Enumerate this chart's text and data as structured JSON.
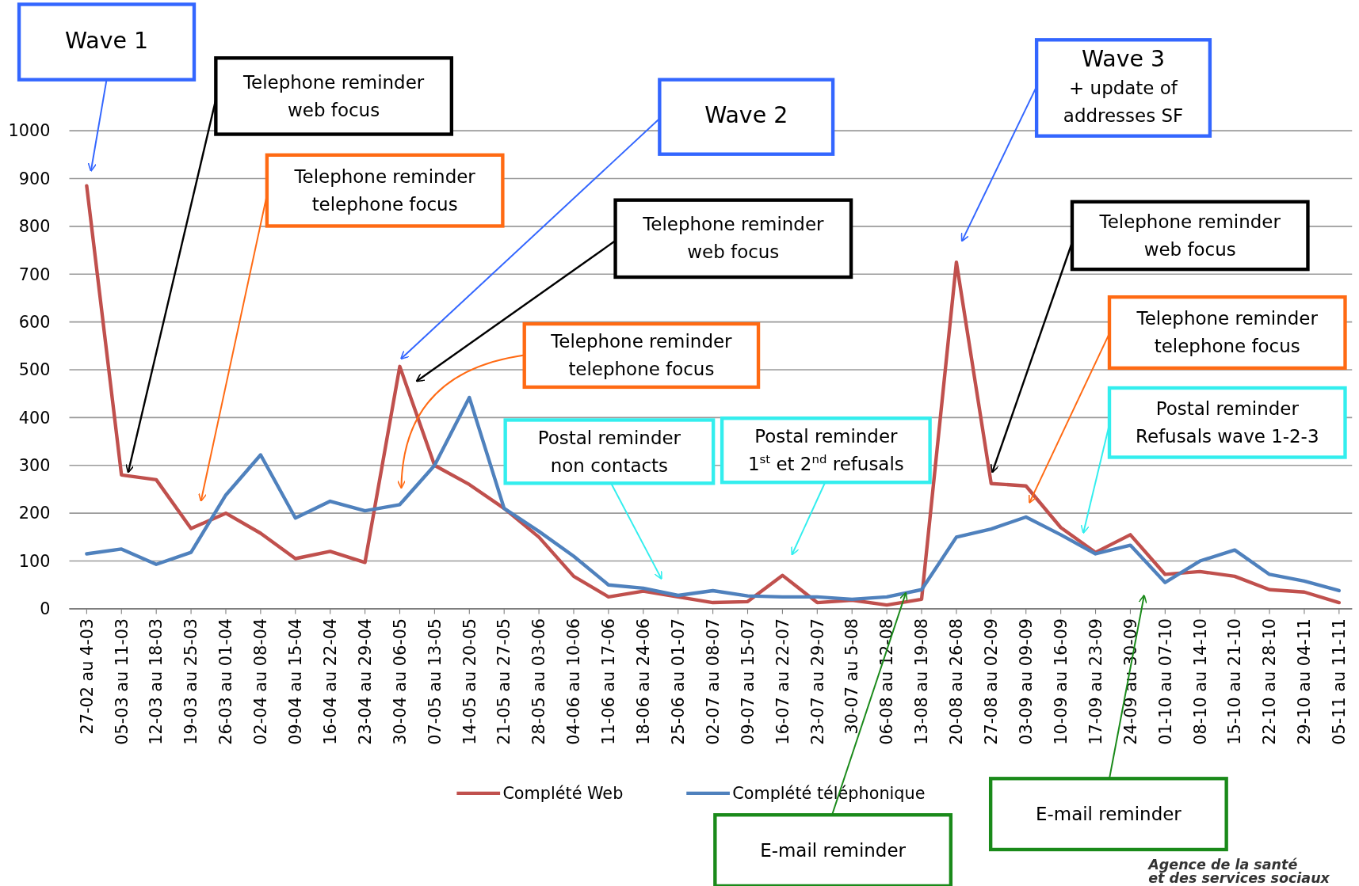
{
  "chart_data": {
    "type": "line",
    "categories": [
      "27-02 au 4-03",
      "05-03 au 11-03",
      "12-03 au 18-03",
      "19-03 au 25-03",
      "26-03 au 01-04",
      "02-04 au 08-04",
      "09-04 au 15-04",
      "16-04 au 22-04",
      "23-04 au 29-04",
      "30-04 au 06-05",
      "07-05 au 13-05",
      "14-05 au 20-05",
      "21-05 au 27-05",
      "28-05 au 03-06",
      "04-06 au 10-06",
      "11-06 au 17-06",
      "18-06 au 24-06",
      "25-06 au 01-07",
      "02-07 au 08-07",
      "09-07 au 15-07",
      "16-07 au 22-07",
      "23-07 au 29-07",
      "30-07 au 5-08",
      "06-08 au 12-08",
      "13-08 au 19-08",
      "20-08 au 26-08",
      "27-08 au 02-09",
      "03-09 au 09-09",
      "10-09 au 16-09",
      "17-09 au 23-09",
      "24-09 au 30-09",
      "01-10 au 07-10",
      "08-10 au 14-10",
      "15-10 au 21-10",
      "22-10 au 28-10",
      "29-10 au 04-11",
      "05-11 au 11-11"
    ],
    "series": [
      {
        "name": "Complété Web",
        "color": "#c0504d",
        "values": [
          885,
          280,
          270,
          168,
          200,
          158,
          105,
          120,
          97,
          507,
          300,
          260,
          210,
          150,
          68,
          25,
          37,
          25,
          13,
          15,
          70,
          13,
          18,
          8,
          20,
          725,
          262,
          257,
          170,
          118,
          155,
          72,
          78,
          68,
          40,
          35,
          13
        ]
      },
      {
        "name": "Complété téléphonique",
        "color": "#4f81bd",
        "values": [
          115,
          125,
          93,
          118,
          238,
          322,
          190,
          225,
          205,
          218,
          300,
          442,
          210,
          162,
          110,
          50,
          43,
          28,
          38,
          27,
          25,
          25,
          20,
          25,
          40,
          150,
          167,
          192,
          155,
          115,
          133,
          55,
          100,
          123,
          72,
          58,
          38
        ]
      }
    ],
    "ylim": [
      0,
      1000
    ],
    "yticks": [
      0,
      100,
      200,
      300,
      400,
      500,
      600,
      700,
      800,
      900,
      1000
    ],
    "grid": "y",
    "legend": "bottom",
    "marker": "none",
    "line_style": "solid",
    "annotations": [
      "Wave 1",
      "Telephone reminder\nweb focus",
      "Telephone reminder\ntelephone focus",
      "Wave 2",
      "Telephone reminder\nweb focus",
      "Telephone reminder\ntelephone focus",
      "Wave 3\n+ update of\naddresses SF",
      "Telephone reminder\nweb focus",
      "Telephone reminder\ntelephone focus",
      "Postal reminder\nnon contacts",
      "Postal reminder\n1$^{st}$ et 2$^{nd}$ refusals",
      "Postal reminder\nRefusals wave 1-2-3",
      "E-mail reminder",
      "E-mail reminder",
      "Agence de la santé\net des services sociaux"
    ]
  }
}
